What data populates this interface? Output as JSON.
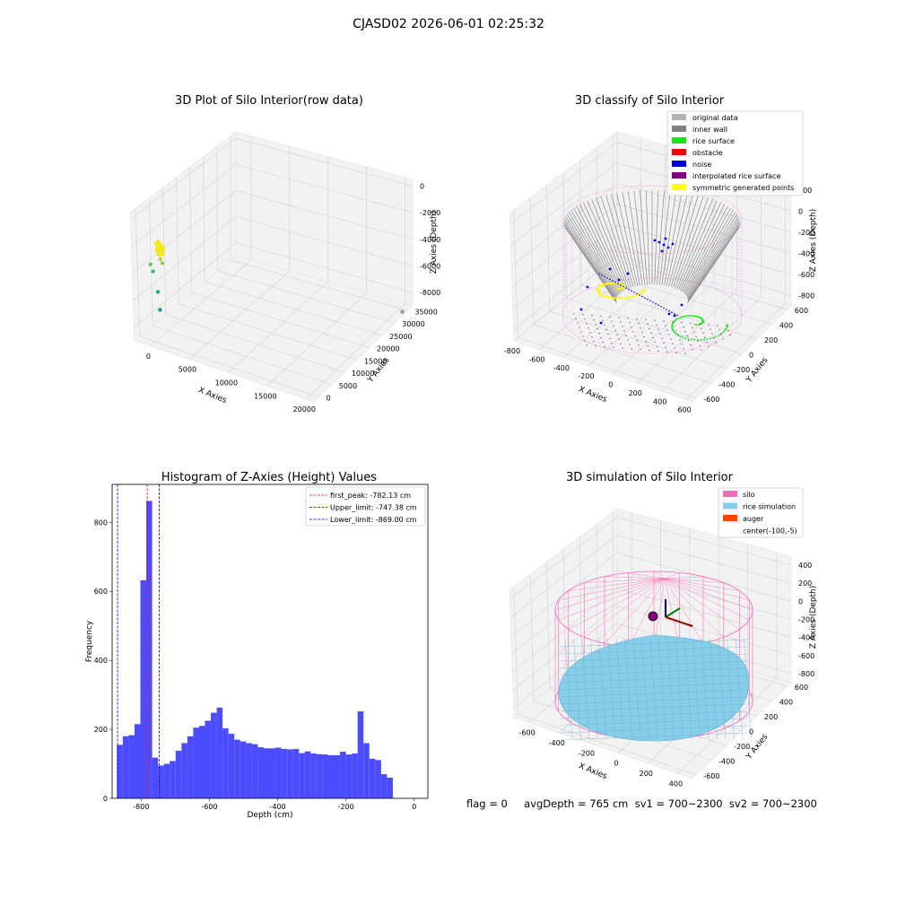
{
  "figure": {
    "suptitle": "CJASD02 2026-06-01 02:25:32",
    "status_text": "flag = 0     avgDepth = 765 cm  sv1 = 700~2300  sv2 = 700~2300"
  },
  "chart_data": [
    {
      "type": "scatter",
      "title": "3D Plot of Silo Interior(row data)",
      "xlabel": "X Axies",
      "ylabel": "Y Axies",
      "zlabel": "Z Axies (Depth)",
      "xticks": [
        "0",
        "5000",
        "10000",
        "15000",
        "20000"
      ],
      "yticks": [
        "0",
        "5000",
        "10000",
        "15000",
        "20000",
        "25000",
        "30000",
        "35000"
      ],
      "zticks": [
        "0",
        "-2000",
        "-4000",
        "-6000",
        "-8000"
      ],
      "xlim": [
        -2000,
        21000
      ],
      "ylim": [
        -2000,
        37000
      ],
      "zlim": [
        -9000,
        500
      ],
      "points": [
        {
          "x": 100,
          "y": 1200,
          "z": -1600,
          "color": "#e8e51a"
        },
        {
          "x": 300,
          "y": 1300,
          "z": -1800,
          "color": "#e8e51a"
        },
        {
          "x": 0,
          "y": 1000,
          "z": -1500,
          "color": "#e8e51a"
        },
        {
          "x": -200,
          "y": 1500,
          "z": -2000,
          "color": "#e8e51a"
        },
        {
          "x": 200,
          "y": 800,
          "z": -2400,
          "color": "#d6e21f"
        },
        {
          "x": 400,
          "y": 700,
          "z": -2700,
          "color": "#a8db34"
        },
        {
          "x": -800,
          "y": 500,
          "z": -3300,
          "color": "#5ec962"
        },
        {
          "x": 600,
          "y": 900,
          "z": -3000,
          "color": "#84d44b"
        },
        {
          "x": -500,
          "y": 600,
          "z": -3800,
          "color": "#3dbc74"
        },
        {
          "x": 200,
          "y": 400,
          "z": -5200,
          "color": "#22a884"
        },
        {
          "x": 500,
          "y": 300,
          "z": -6500,
          "color": "#20928c"
        },
        {
          "x": 20000,
          "y": 35000,
          "z": -8500,
          "color": "#999999"
        }
      ]
    },
    {
      "type": "scatter",
      "title": "3D classify of Silo Interior",
      "xlabel": "X Axies",
      "ylabel": "Y Axies",
      "zlabel": "Z Axies (Depth)",
      "xticks": [
        "-800",
        "-600",
        "-400",
        "-200",
        "0",
        "200",
        "400",
        "600"
      ],
      "yticks": [
        "-600",
        "-400",
        "-200",
        "0",
        "200",
        "400",
        "600"
      ],
      "zticks": [
        "200",
        "0",
        "-200",
        "-400",
        "-600",
        "-800"
      ],
      "xlim": [
        -800,
        650
      ],
      "ylim": [
        -650,
        650
      ],
      "zlim": [
        -900,
        300
      ],
      "legend": [
        {
          "label": "original data",
          "color": "#b3b3b3"
        },
        {
          "label": "inner wall",
          "color": "#808080"
        },
        {
          "label": "rice surface",
          "color": "#19e619"
        },
        {
          "label": "obstacle",
          "color": "#ff0000"
        },
        {
          "label": "noise",
          "color": "#0000ee"
        },
        {
          "label": "interpolated rice surface",
          "color": "#800080"
        },
        {
          "label": "symmetric generated points",
          "color": "#ffff00"
        }
      ]
    },
    {
      "type": "bar",
      "title": "Histogram of Z-Axies (Height) Values",
      "xlabel": "Depth (cm)",
      "ylabel": "Frequency",
      "xticks": [
        "-800",
        "-600",
        "-400",
        "-200",
        "0"
      ],
      "yticks": [
        "0",
        "200",
        "400",
        "600",
        "800"
      ],
      "xlim": [
        -885,
        40
      ],
      "ylim": [
        0,
        910
      ],
      "bin_start": -871,
      "bin_width": 17.2,
      "values": [
        155,
        180,
        183,
        215,
        632,
        862,
        118,
        95,
        100,
        108,
        138,
        160,
        180,
        205,
        210,
        225,
        248,
        263,
        203,
        187,
        170,
        165,
        160,
        157,
        148,
        145,
        145,
        147,
        143,
        142,
        143,
        131,
        136,
        130,
        128,
        127,
        125,
        125,
        135,
        127,
        130,
        252,
        160,
        115,
        111,
        70,
        60
      ],
      "bar_color": "#4c4cff",
      "vlines": [
        {
          "label": "first_peak: -782.13 cm",
          "x": -782.13,
          "color": "#ff0000"
        },
        {
          "label": "Upper_limit: -747.38 cm",
          "x": -747.38,
          "color": "#0000ff"
        },
        {
          "label": "Lower_limit: -869.00 cm",
          "x": -869.0,
          "color": "#0000ff"
        }
      ]
    },
    {
      "type": "surface",
      "title": "3D simulation of Silo Interior",
      "xlabel": "X Axies",
      "ylabel": "Y Axies",
      "zlabel": "Z Axies (Depth)",
      "xticks": [
        "-600",
        "-400",
        "-200",
        "0",
        "200",
        "400"
      ],
      "yticks": [
        "-600",
        "-400",
        "-200",
        "0",
        "200",
        "400",
        "600"
      ],
      "zticks": [
        "400",
        "200",
        "0",
        "-200",
        "-400",
        "-600",
        "-800"
      ],
      "xlim": [
        -700,
        500
      ],
      "ylim": [
        -650,
        650
      ],
      "zlim": [
        -900,
        500
      ],
      "legend": [
        {
          "label": "silo",
          "color": "#ff69b4"
        },
        {
          "label": "rice simulation",
          "color": "#87ceeb"
        },
        {
          "label": "auger",
          "color": "#ff4500"
        },
        {
          "label": "center(-100,-5)",
          "color": ""
        }
      ]
    }
  ]
}
